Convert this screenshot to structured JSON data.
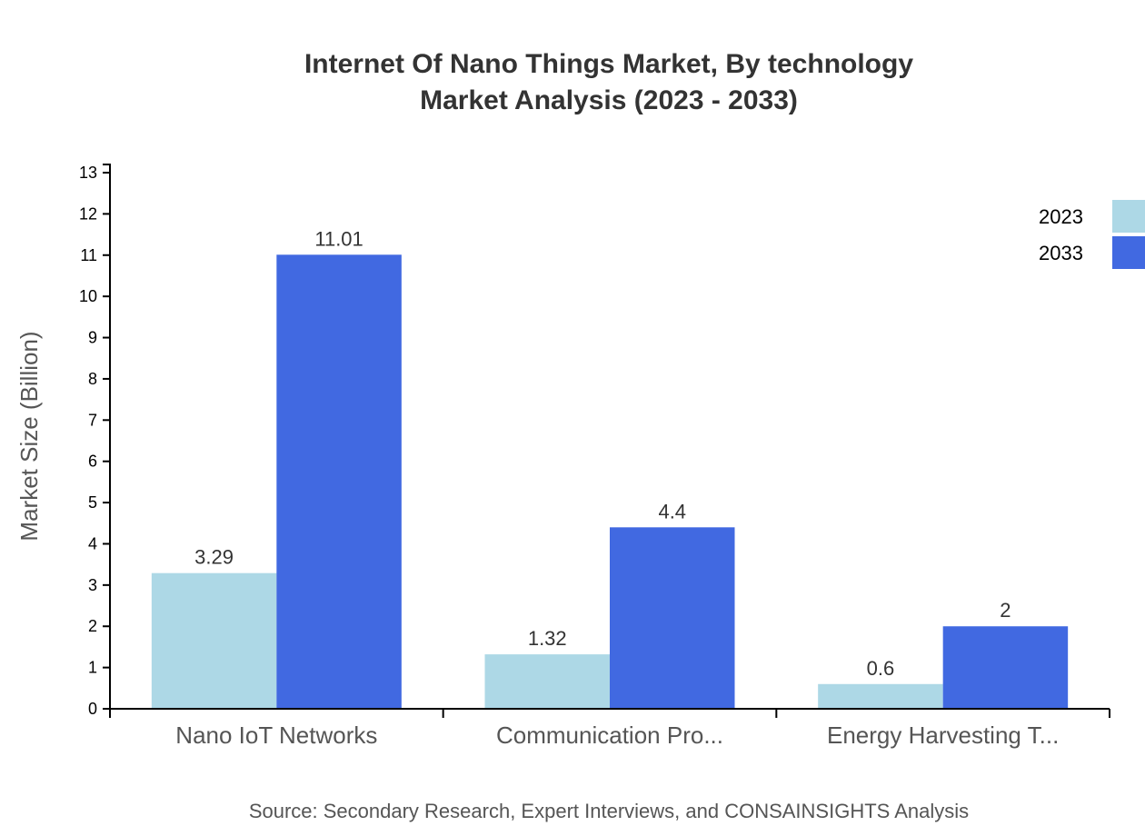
{
  "chart_data": {
    "type": "bar",
    "title": "Internet Of Nano Things Market, By technology",
    "subtitle": "Market Analysis (2023 - 2033)",
    "ylabel": "Market Size (Billion)",
    "xlabel": "",
    "ylim": [
      0,
      13
    ],
    "yticks": [
      0,
      1,
      2,
      3,
      4,
      5,
      6,
      7,
      8,
      9,
      10,
      11,
      12,
      13
    ],
    "categories": [
      "Nano IoT Networks",
      "Communication Pro...",
      "Energy Harvesting T..."
    ],
    "series": [
      {
        "name": "2023",
        "color": "#add8e6",
        "values": [
          3.29,
          1.32,
          0.6
        ]
      },
      {
        "name": "2033",
        "color": "#4169e1",
        "values": [
          11.01,
          4.4,
          2
        ]
      }
    ],
    "legend": "top-right",
    "grid": false,
    "source": "Source: Secondary Research, Expert Interviews, and CONSAINSIGHTS Analysis"
  }
}
